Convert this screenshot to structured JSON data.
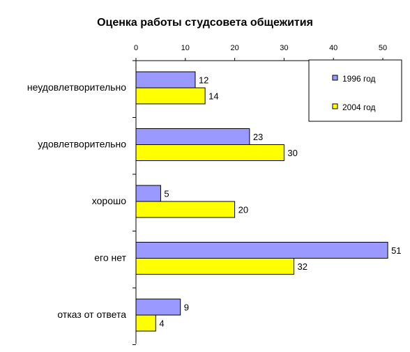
{
  "chart_data": {
    "type": "bar",
    "orientation": "horizontal",
    "title": "Оценка работы студсовета общежития",
    "categories": [
      "неудовлетворительно",
      "удовлетворительно",
      "хорошо",
      "его нет",
      "отказ от ответа"
    ],
    "series": [
      {
        "name": "1996 год",
        "values": [
          12,
          23,
          5,
          51,
          9
        ],
        "color": "#9999ff"
      },
      {
        "name": "2004 год",
        "values": [
          14,
          30,
          20,
          32,
          4
        ],
        "color": "#ffff00"
      }
    ],
    "x_ticks": [
      0,
      10,
      20,
      30,
      40,
      50
    ],
    "xlim": [
      0,
      55
    ],
    "x_axis_position": "top",
    "grid": false,
    "data_labels": true,
    "legend_position": "top-right",
    "xlabel": "",
    "ylabel": ""
  }
}
